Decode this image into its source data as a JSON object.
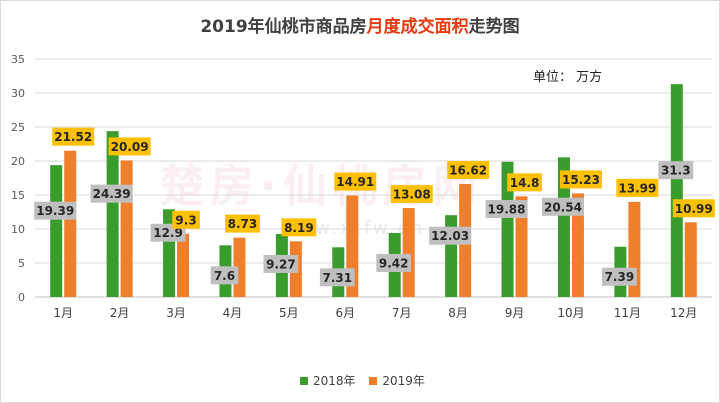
{
  "title": {
    "prefix": "2019年仙桃市商品房",
    "highlight": "月度成交面积",
    "suffix": "走势图"
  },
  "unit_label": "单位：  万方",
  "watermark": "楚房·仙桃房网",
  "watermark_sub": "www.xtfw.cn",
  "colors": {
    "series_2018": "#3a9c2d",
    "series_2019": "#f07f2c",
    "label_2018_bg": "#bfbfbf",
    "label_2019_bg": "#ffc000",
    "title_highlight": "#e8380d"
  },
  "chart_data": {
    "type": "bar",
    "categories": [
      "1月",
      "2月",
      "3月",
      "4月",
      "5月",
      "6月",
      "7月",
      "8月",
      "9月",
      "10月",
      "11月",
      "12月"
    ],
    "series": [
      {
        "name": "2018年",
        "values": [
          19.39,
          24.39,
          12.9,
          7.6,
          9.27,
          7.31,
          9.42,
          12.03,
          19.88,
          20.54,
          7.39,
          31.3
        ]
      },
      {
        "name": "2019年",
        "values": [
          21.52,
          20.09,
          9.3,
          8.73,
          8.19,
          14.91,
          13.08,
          16.62,
          14.8,
          15.23,
          13.99,
          10.99
        ]
      }
    ],
    "yticks": [
      0,
      5,
      10,
      15,
      20,
      25,
      30,
      35
    ],
    "ylim": [
      0,
      35
    ],
    "grid": true,
    "legend": "bottom"
  }
}
